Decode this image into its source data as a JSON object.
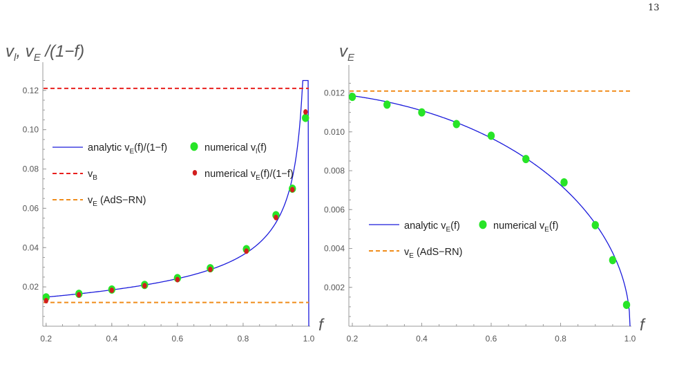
{
  "page": {
    "number": "13"
  },
  "colors": {
    "analytic": "#1a1adb",
    "vB": "#e8201e",
    "vE": "#f08c1a",
    "numerical_green": "#27e427",
    "numerical_red": "#d21e1e",
    "axis": "#9a9a9a"
  },
  "chart_data": [
    {
      "type": "scatter",
      "xlabel": "f",
      "ylabel": "v_l, v_E /(1−f)",
      "ylabel_parts": {
        "a": "v",
        "a_sub": "l",
        "b": ", v",
        "b_sub": "E",
        "c": " /(1−f)"
      },
      "xlim": [
        0.19,
        1.0
      ],
      "ylim": [
        0.0,
        0.128
      ],
      "x_ticks": [
        0.2,
        0.4,
        0.6,
        0.8,
        1.0
      ],
      "x_tick_labels": [
        "0.2",
        "0.4",
        "0.6",
        "0.8",
        "1.0"
      ],
      "y_ticks": [
        0.02,
        0.04,
        0.06,
        0.08,
        0.1,
        0.12
      ],
      "y_tick_labels": [
        "0.02",
        "0.04",
        "0.06",
        "0.08",
        "0.10",
        "0.12"
      ],
      "series": [
        {
          "name": "analytic v_E(f)/(1−f)",
          "kind": "line",
          "color": "#1a1adb",
          "formula_vE0": 0.0121,
          "formula_fmax": 1.0,
          "legend": {
            "main": "analytic v",
            "sub": "E",
            "tail": "(f)/(1−f)"
          }
        },
        {
          "name": "v_B",
          "kind": "hline",
          "y": 0.121,
          "color": "#e8201e",
          "legend": {
            "main": "v",
            "sub": "B",
            "tail": ""
          }
        },
        {
          "name": "v_E (AdS−RN)",
          "kind": "hline",
          "y": 0.0121,
          "color": "#f08c1a",
          "legend": {
            "main": "v",
            "sub": "E",
            "tail": " (AdS−RN)"
          }
        },
        {
          "name": "numerical v_l(f)",
          "kind": "points",
          "color": "#27e427",
          "x": [
            0.2,
            0.3,
            0.4,
            0.5,
            0.6,
            0.7,
            0.81,
            0.9,
            0.95,
            0.99
          ],
          "y": [
            0.0147,
            0.0165,
            0.0187,
            0.021,
            0.0245,
            0.0295,
            0.0392,
            0.0565,
            0.07,
            0.106
          ],
          "legend": {
            "main": "numerical v",
            "sub": "l",
            "tail": "(f)"
          }
        },
        {
          "name": "numerical v_E(f)/(1−f)",
          "kind": "points",
          "color": "#d21e1e",
          "x": [
            0.2,
            0.3,
            0.4,
            0.5,
            0.6,
            0.7,
            0.81,
            0.9,
            0.95,
            0.99
          ],
          "y": [
            0.013,
            0.016,
            0.0183,
            0.0206,
            0.0237,
            0.0289,
            0.0382,
            0.0553,
            0.0695,
            0.109
          ],
          "legend": {
            "main": "numerical v",
            "sub": "E",
            "tail": "(f)/(1−f)"
          }
        }
      ],
      "legend_placement": "center-left"
    },
    {
      "type": "scatter",
      "xlabel": "f",
      "ylabel": "v_E",
      "ylabel_parts": {
        "a": "v",
        "a_sub": "E"
      },
      "xlim": [
        0.19,
        1.0
      ],
      "ylim": [
        0.0,
        0.0128
      ],
      "x_ticks": [
        0.2,
        0.4,
        0.6,
        0.8,
        1.0
      ],
      "x_tick_labels": [
        "0.2",
        "0.4",
        "0.6",
        "0.8",
        "1.0"
      ],
      "y_ticks": [
        0.002,
        0.004,
        0.006,
        0.008,
        0.01,
        0.012
      ],
      "y_tick_labels": [
        "0.002",
        "0.004",
        "0.006",
        "0.008",
        "0.010",
        "0.012"
      ],
      "series": [
        {
          "name": "analytic v_E(f)",
          "kind": "line",
          "color": "#1a1adb",
          "formula_vE0": 0.0121,
          "formula_fmax": 1.0,
          "legend": {
            "main": "analytic v",
            "sub": "E",
            "tail": "(f)"
          }
        },
        {
          "name": "numerical v_E(f)",
          "kind": "points",
          "color": "#27e427",
          "x": [
            0.2,
            0.3,
            0.4,
            0.5,
            0.6,
            0.7,
            0.81,
            0.9,
            0.95,
            0.99
          ],
          "y": [
            0.0118,
            0.0114,
            0.011,
            0.0104,
            0.0098,
            0.0086,
            0.0074,
            0.0052,
            0.0034,
            0.0011
          ],
          "legend": {
            "main": "numerical v",
            "sub": "E",
            "tail": "(f)"
          }
        },
        {
          "name": "v_E (AdS−RN)",
          "kind": "hline",
          "y": 0.0121,
          "color": "#f08c1a",
          "legend": {
            "main": "v",
            "sub": "E",
            "tail": " (AdS−RN)"
          }
        }
      ],
      "legend_placement": "lower-left"
    }
  ]
}
